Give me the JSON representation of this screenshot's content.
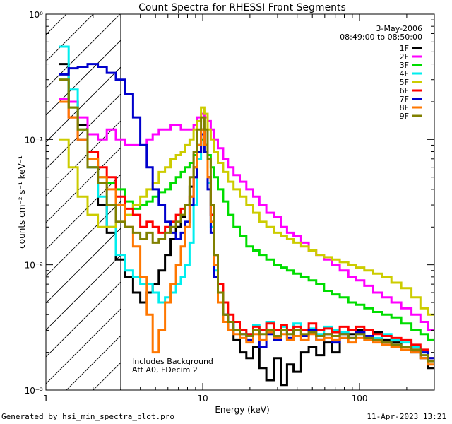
{
  "chart_data": {
    "type": "line",
    "title": "Count Spectra for RHESSI Front Segments",
    "xlabel": "Energy (keV)",
    "ylabel": "counts cm⁻² s⁻¹ keV⁻¹",
    "xscale": "log",
    "yscale": "log",
    "xlim": [
      1,
      300
    ],
    "ylim": [
      0.001,
      1
    ],
    "x_ticks": [
      1,
      10,
      100
    ],
    "x_tick_labels": [
      "1",
      "10",
      "100"
    ],
    "y_ticks": [
      0.001,
      0.01,
      0.1,
      1
    ],
    "y_tick_labels": [
      "10⁻³",
      "10⁻²",
      "10⁻¹",
      "10⁰"
    ],
    "date": "3-May-2006",
    "time_range": "08:49:00 to 08:50:00",
    "annotations": [
      "Includes Background",
      "Att A0, FDecim 2"
    ],
    "hatched_region_keV": [
      1,
      3
    ],
    "legend_position": "top-right",
    "footer_left": "Generated by hsi_min_spectra_plot.pro",
    "footer_right": "11-Apr-2023 13:21",
    "x": [
      1.3,
      1.5,
      1.7,
      2.0,
      2.3,
      2.6,
      3.0,
      3.4,
      3.8,
      4.2,
      4.6,
      5.0,
      5.5,
      6.0,
      6.5,
      7.0,
      7.5,
      8.0,
      8.5,
      9.0,
      9.5,
      10.0,
      10.5,
      11.0,
      11.5,
      12.0,
      13.0,
      14.0,
      15.0,
      16.5,
      18.0,
      20.0,
      22.0,
      24.0,
      27.0,
      30.0,
      33.0,
      36.0,
      40.0,
      45.0,
      50.0,
      56.0,
      63.0,
      70.0,
      80.0,
      90.0,
      100.0,
      115.0,
      130.0,
      150.0,
      170.0,
      200.0,
      230.0,
      260.0,
      290.0
    ],
    "series": [
      {
        "name": "1F",
        "color": "#000000",
        "values": [
          0.4,
          0.2,
          0.13,
          0.06,
          0.03,
          0.018,
          0.011,
          0.008,
          0.006,
          0.005,
          0.006,
          0.007,
          0.009,
          0.012,
          0.016,
          0.02,
          0.024,
          0.03,
          0.042,
          0.06,
          0.09,
          0.12,
          0.09,
          0.05,
          0.025,
          0.012,
          0.006,
          0.004,
          0.003,
          0.0025,
          0.002,
          0.0018,
          0.0022,
          0.0015,
          0.0012,
          0.0018,
          0.0011,
          0.0016,
          0.0014,
          0.002,
          0.0022,
          0.0019,
          0.0024,
          0.002,
          0.0026,
          0.0028,
          0.003,
          0.0026,
          0.0029,
          0.0025,
          0.0024,
          0.0022,
          0.002,
          0.0018,
          0.0015
        ]
      },
      {
        "name": "2F",
        "color": "#ff00ff",
        "values": [
          0.21,
          0.2,
          0.15,
          0.11,
          0.1,
          0.12,
          0.1,
          0.09,
          0.09,
          0.09,
          0.1,
          0.11,
          0.12,
          0.12,
          0.13,
          0.13,
          0.12,
          0.12,
          0.12,
          0.13,
          0.15,
          0.16,
          0.15,
          0.14,
          0.12,
          0.1,
          0.085,
          0.07,
          0.06,
          0.052,
          0.046,
          0.04,
          0.035,
          0.03,
          0.026,
          0.024,
          0.02,
          0.018,
          0.017,
          0.015,
          0.013,
          0.012,
          0.011,
          0.01,
          0.009,
          0.008,
          0.0075,
          0.0068,
          0.006,
          0.0055,
          0.005,
          0.0045,
          0.004,
          0.0035,
          0.003
        ]
      },
      {
        "name": "3F",
        "color": "#00dd00",
        "values": [
          0.3,
          0.18,
          0.12,
          0.07,
          0.05,
          0.045,
          0.04,
          0.032,
          0.028,
          0.03,
          0.032,
          0.035,
          0.038,
          0.04,
          0.045,
          0.05,
          0.055,
          0.06,
          0.065,
          0.075,
          0.09,
          0.1,
          0.09,
          0.075,
          0.06,
          0.05,
          0.04,
          0.032,
          0.025,
          0.02,
          0.017,
          0.014,
          0.013,
          0.012,
          0.011,
          0.01,
          0.0095,
          0.009,
          0.0085,
          0.008,
          0.0075,
          0.007,
          0.0062,
          0.0058,
          0.0055,
          0.005,
          0.0048,
          0.0045,
          0.0042,
          0.004,
          0.0038,
          0.0034,
          0.003,
          0.0028,
          0.0025
        ]
      },
      {
        "name": "4F",
        "color": "#00eeee",
        "values": [
          0.55,
          0.25,
          0.1,
          0.06,
          0.035,
          0.02,
          0.012,
          0.009,
          0.008,
          0.007,
          0.007,
          0.006,
          0.005,
          0.0055,
          0.006,
          0.007,
          0.008,
          0.01,
          0.015,
          0.03,
          0.07,
          0.11,
          0.09,
          0.045,
          0.02,
          0.009,
          0.005,
          0.004,
          0.0035,
          0.003,
          0.003,
          0.0028,
          0.0033,
          0.003,
          0.0035,
          0.003,
          0.0032,
          0.0028,
          0.0034,
          0.003,
          0.0031,
          0.0028,
          0.0032,
          0.003,
          0.0029,
          0.003,
          0.0028,
          0.003,
          0.0026,
          0.0028,
          0.0025,
          0.0024,
          0.0022,
          0.002,
          0.0018
        ]
      },
      {
        "name": "5F",
        "color": "#cccc00",
        "values": [
          0.1,
          0.06,
          0.035,
          0.025,
          0.02,
          0.02,
          0.022,
          0.025,
          0.03,
          0.035,
          0.04,
          0.045,
          0.055,
          0.06,
          0.07,
          0.075,
          0.08,
          0.09,
          0.1,
          0.12,
          0.14,
          0.18,
          0.16,
          0.12,
          0.1,
          0.08,
          0.065,
          0.055,
          0.046,
          0.04,
          0.035,
          0.03,
          0.026,
          0.022,
          0.02,
          0.018,
          0.017,
          0.016,
          0.015,
          0.014,
          0.013,
          0.012,
          0.0115,
          0.011,
          0.0105,
          0.01,
          0.0095,
          0.009,
          0.0085,
          0.008,
          0.0072,
          0.0065,
          0.0055,
          0.0045,
          0.004
        ]
      },
      {
        "name": "6F",
        "color": "#ff0000",
        "values": [
          0.2,
          0.15,
          0.1,
          0.08,
          0.06,
          0.05,
          0.035,
          0.028,
          0.025,
          0.02,
          0.022,
          0.02,
          0.018,
          0.02,
          0.022,
          0.025,
          0.028,
          0.03,
          0.035,
          0.05,
          0.08,
          0.11,
          0.09,
          0.05,
          0.025,
          0.012,
          0.007,
          0.005,
          0.004,
          0.0035,
          0.003,
          0.0028,
          0.0032,
          0.003,
          0.0034,
          0.003,
          0.0033,
          0.003,
          0.0032,
          0.003,
          0.0034,
          0.003,
          0.0031,
          0.0029,
          0.0032,
          0.003,
          0.0032,
          0.003,
          0.0028,
          0.0027,
          0.0026,
          0.0025,
          0.0023,
          0.0021,
          0.0018
        ]
      },
      {
        "name": "7F",
        "color": "#0000cc",
        "values": [
          0.33,
          0.37,
          0.38,
          0.4,
          0.38,
          0.34,
          0.3,
          0.23,
          0.15,
          0.09,
          0.06,
          0.04,
          0.03,
          0.022,
          0.018,
          0.016,
          0.018,
          0.022,
          0.03,
          0.05,
          0.08,
          0.11,
          0.08,
          0.04,
          0.018,
          0.008,
          0.005,
          0.004,
          0.0035,
          0.003,
          0.0028,
          0.0025,
          0.003,
          0.0022,
          0.0028,
          0.0025,
          0.003,
          0.0026,
          0.003,
          0.0027,
          0.003,
          0.0025,
          0.0028,
          0.0024,
          0.0028,
          0.0026,
          0.0029,
          0.0027,
          0.0025,
          0.0024,
          0.0023,
          0.0022,
          0.0021,
          0.002,
          0.0018
        ]
      },
      {
        "name": "8F",
        "color": "#ff7700",
        "values": [
          0.2,
          0.15,
          0.1,
          0.07,
          0.05,
          0.04,
          0.03,
          0.02,
          0.014,
          0.008,
          0.004,
          0.002,
          0.003,
          0.005,
          0.007,
          0.01,
          0.014,
          0.02,
          0.035,
          0.06,
          0.09,
          0.12,
          0.09,
          0.05,
          0.022,
          0.01,
          0.005,
          0.0035,
          0.003,
          0.0028,
          0.0026,
          0.0024,
          0.0028,
          0.0025,
          0.0029,
          0.0026,
          0.0028,
          0.0025,
          0.0027,
          0.0025,
          0.0028,
          0.0025,
          0.0026,
          0.0025,
          0.0026,
          0.0024,
          0.0026,
          0.0025,
          0.0024,
          0.0023,
          0.0022,
          0.0021,
          0.002,
          0.0018,
          0.0016
        ]
      },
      {
        "name": "9F",
        "color": "#808000",
        "values": [
          0.3,
          0.18,
          0.12,
          0.06,
          0.045,
          0.03,
          0.022,
          0.02,
          0.018,
          0.016,
          0.018,
          0.015,
          0.016,
          0.018,
          0.02,
          0.022,
          0.025,
          0.03,
          0.05,
          0.08,
          0.12,
          0.15,
          0.12,
          0.07,
          0.03,
          0.012,
          0.006,
          0.004,
          0.0035,
          0.003,
          0.0028,
          0.0027,
          0.003,
          0.0028,
          0.003,
          0.0027,
          0.003,
          0.0028,
          0.003,
          0.0028,
          0.0029,
          0.0027,
          0.0028,
          0.0027,
          0.0028,
          0.0026,
          0.0028,
          0.0026,
          0.0025,
          0.0024,
          0.0023,
          0.0022,
          0.0021,
          0.0019,
          0.0017
        ]
      }
    ]
  }
}
